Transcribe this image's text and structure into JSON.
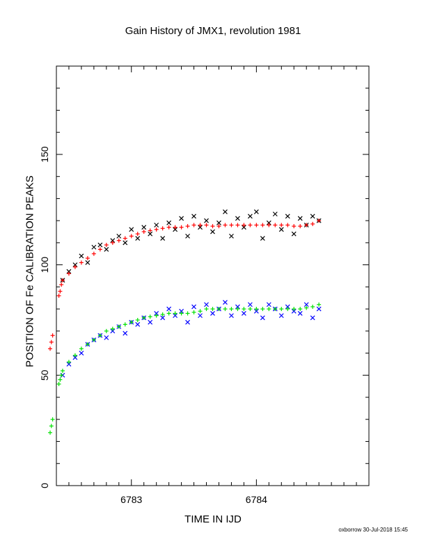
{
  "chart_data": {
    "type": "scatter",
    "title": "Gain History of JMX1, revolution 1981",
    "xlabel": "TIME IN IJD",
    "ylabel": "POSITION OF Fe CALIBRATION PEAKS",
    "xlim": [
      6782.4,
      6784.9
    ],
    "ylim": [
      0,
      190
    ],
    "xticks": [
      6783,
      6784
    ],
    "xtick_labels": [
      "6783",
      "6784"
    ],
    "yticks": [
      0,
      50,
      100,
      150
    ],
    "ytick_labels": [
      "0",
      "50",
      "100",
      "150"
    ],
    "grid": false,
    "series": [
      {
        "color": "#000000",
        "marker": "x",
        "x": [
          6782.45,
          6782.5,
          6782.55,
          6782.6,
          6782.65,
          6782.7,
          6782.75,
          6782.8,
          6782.85,
          6782.9,
          6782.95,
          6783.0,
          6783.05,
          6783.1,
          6783.15,
          6783.2,
          6783.25,
          6783.3,
          6783.35,
          6783.4,
          6783.45,
          6783.5,
          6783.55,
          6783.6,
          6783.65,
          6783.7,
          6783.75,
          6783.8,
          6783.85,
          6783.9,
          6783.95,
          6784.0,
          6784.05,
          6784.1,
          6784.15,
          6784.2,
          6784.25,
          6784.3,
          6784.35,
          6784.4,
          6784.45,
          6784.5
        ],
        "y": [
          93,
          97,
          100,
          104,
          101,
          108,
          109,
          107,
          111,
          113,
          110,
          116,
          112,
          117,
          114,
          118,
          112,
          119,
          116,
          121,
          113,
          122,
          117,
          120,
          115,
          119,
          124,
          113,
          121,
          117,
          122,
          124,
          112,
          119,
          123,
          116,
          122,
          114,
          121,
          118,
          122,
          120
        ]
      },
      {
        "color": "#ff0000",
        "marker": "+",
        "x": [
          6782.35,
          6782.36,
          6782.37,
          6782.42,
          6782.43,
          6782.44,
          6782.45,
          6782.5,
          6782.55,
          6782.6,
          6782.65,
          6782.7,
          6782.75,
          6782.8,
          6782.85,
          6782.9,
          6782.95,
          6783.0,
          6783.05,
          6783.1,
          6783.15,
          6783.2,
          6783.25,
          6783.3,
          6783.35,
          6783.4,
          6783.45,
          6783.5,
          6783.55,
          6783.6,
          6783.65,
          6783.7,
          6783.75,
          6783.8,
          6783.85,
          6783.9,
          6783.95,
          6784.0,
          6784.05,
          6784.1,
          6784.15,
          6784.2,
          6784.25,
          6784.3,
          6784.35,
          6784.4,
          6784.45,
          6784.5
        ],
        "y": [
          62,
          65,
          68,
          86,
          88,
          91,
          93,
          96,
          99,
          101,
          103,
          105,
          107,
          109,
          110,
          111,
          112,
          113,
          114,
          115,
          115.5,
          116,
          116.5,
          117,
          117,
          117,
          117.5,
          118,
          118,
          118,
          117.5,
          117.5,
          118,
          118,
          118,
          118,
          118,
          118,
          118,
          118,
          118,
          118,
          118,
          117.5,
          117.5,
          118,
          118.5,
          120
        ]
      },
      {
        "color": "#0000ff",
        "marker": "x",
        "x": [
          6782.45,
          6782.5,
          6782.55,
          6782.6,
          6782.65,
          6782.7,
          6782.75,
          6782.8,
          6782.85,
          6782.9,
          6782.95,
          6783.0,
          6783.05,
          6783.1,
          6783.15,
          6783.2,
          6783.25,
          6783.3,
          6783.35,
          6783.4,
          6783.45,
          6783.5,
          6783.55,
          6783.6,
          6783.65,
          6783.7,
          6783.75,
          6783.8,
          6783.85,
          6783.9,
          6783.95,
          6784.0,
          6784.05,
          6784.1,
          6784.15,
          6784.2,
          6784.25,
          6784.3,
          6784.35,
          6784.4,
          6784.45,
          6784.5
        ],
        "y": [
          50,
          55,
          58,
          60,
          64,
          66,
          68,
          67,
          70,
          72,
          69,
          74,
          73,
          76,
          74,
          78,
          76,
          80,
          77,
          79,
          74,
          81,
          77,
          82,
          78,
          80,
          83,
          77,
          81,
          78,
          82,
          79,
          76,
          82,
          80,
          77,
          81,
          79,
          78,
          82,
          76,
          80
        ]
      },
      {
        "color": "#00e000",
        "marker": "+",
        "x": [
          6782.35,
          6782.36,
          6782.37,
          6782.42,
          6782.43,
          6782.44,
          6782.45,
          6782.5,
          6782.55,
          6782.6,
          6782.65,
          6782.7,
          6782.75,
          6782.8,
          6782.85,
          6782.9,
          6782.95,
          6783.0,
          6783.05,
          6783.1,
          6783.15,
          6783.2,
          6783.25,
          6783.3,
          6783.35,
          6783.4,
          6783.45,
          6783.5,
          6783.55,
          6783.6,
          6783.65,
          6783.7,
          6783.75,
          6783.8,
          6783.85,
          6783.9,
          6783.95,
          6784.0,
          6784.05,
          6784.1,
          6784.15,
          6784.2,
          6784.25,
          6784.3,
          6784.35,
          6784.4,
          6784.45,
          6784.5
        ],
        "y": [
          24,
          27,
          30,
          46,
          48,
          50,
          52,
          56,
          59,
          62,
          64,
          66,
          68,
          70,
          71,
          72,
          73,
          74,
          75,
          76,
          76.5,
          77,
          77.5,
          78,
          78,
          78,
          78,
          78.5,
          79,
          80,
          80,
          80,
          80,
          80,
          80,
          80,
          80,
          80,
          80,
          80,
          80,
          80,
          80,
          80,
          80,
          80.5,
          81,
          82
        ]
      }
    ]
  },
  "footer": "oxborrow 30-Jul-2018 15:45"
}
